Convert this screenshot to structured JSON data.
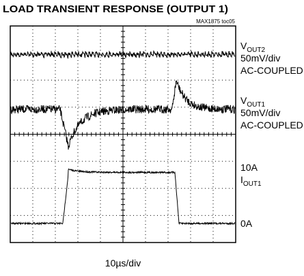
{
  "header": {
    "title": "LOAD TRANSIENT RESPONSE (OUTPUT 1)",
    "note": "MAX1875 toc05"
  },
  "channels": [
    {
      "symbol": "V",
      "subscript": "OUT2",
      "scale": "50mV/div",
      "coupling": "AC-COUPLED"
    },
    {
      "symbol": "V",
      "subscript": "OUT1",
      "scale": "50mV/div",
      "coupling": "AC-COUPLED"
    },
    {
      "high": "10A",
      "symbol": "I",
      "subscript": "OUT1",
      "low": "0A"
    }
  ],
  "time_scale": "10µs/div"
}
